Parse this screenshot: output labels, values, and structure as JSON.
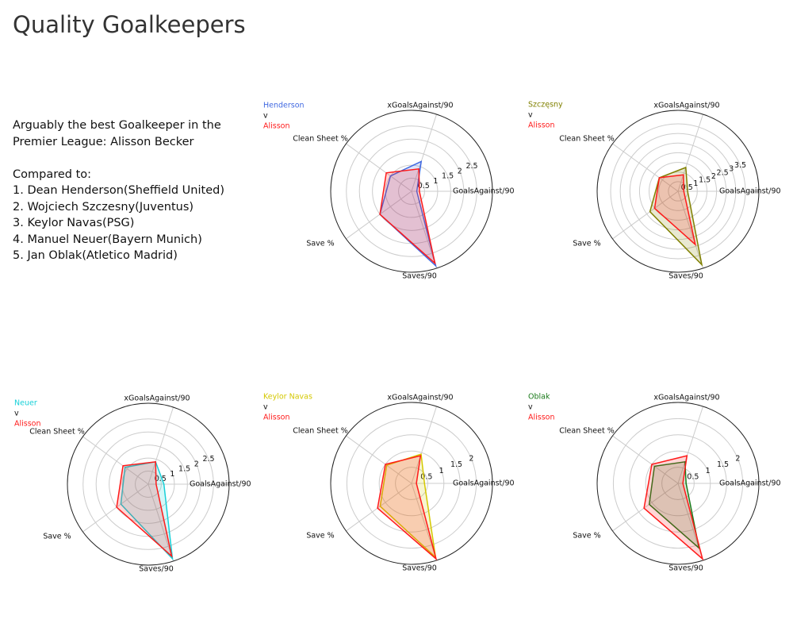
{
  "title": "Quality Goalkeepers",
  "description": {
    "lines": [
      "Arguably the best Goalkeeper in the",
      "Premier League: Alisson Becker",
      "",
      "Compared to:",
      "1. Dean Henderson(Sheffield United)",
      "2. Wojciech Szczesny(Juventus)",
      "3. Keylor Navas(PSG)",
      "4. Manuel Neuer(Bayern Munich)",
      "5. Jan Oblak(Atletico Madrid)"
    ]
  },
  "chart_data": [
    {
      "type": "radar",
      "legend_separator": "v",
      "categories": [
        "GoalsAgainst/90",
        "xGoalsAgainst/90",
        "Clean Sheet %",
        "Save %",
        "Saves/90"
      ],
      "rlim": [
        0,
        3.1
      ],
      "rticks": [
        0.5,
        1.0,
        1.5,
        2.0,
        2.5
      ],
      "series": [
        {
          "name": "Henderson",
          "color": "#4169e1",
          "values": [
            0.2,
            1.2,
            1.0,
            1.5,
            3.0
          ]
        },
        {
          "name": "Alisson",
          "color": "#ff1a1a",
          "values": [
            0.3,
            0.9,
            1.2,
            1.5,
            2.9
          ]
        }
      ]
    },
    {
      "type": "radar",
      "legend_separator": "v",
      "categories": [
        "GoalsAgainst/90",
        "xGoalsAgainst/90",
        "Clean Sheet %",
        "Save %",
        "Saves/90"
      ],
      "rlim": [
        0,
        4.2
      ],
      "rticks": [
        0.5,
        1.0,
        1.5,
        2.0,
        2.5,
        3.0,
        3.5
      ],
      "series": [
        {
          "name": "Szczęsny",
          "color": "#808000",
          "values": [
            0.5,
            1.3,
            1.2,
            1.8,
            4.0
          ]
        },
        {
          "name": "Alisson",
          "color": "#ff1a1a",
          "values": [
            0.3,
            0.9,
            1.2,
            1.5,
            2.9
          ]
        }
      ]
    },
    {
      "type": "radar",
      "legend_separator": "v",
      "categories": [
        "GoalsAgainst/90",
        "xGoalsAgainst/90",
        "Clean Sheet %",
        "Save %",
        "Saves/90"
      ],
      "rlim": [
        0,
        3.1
      ],
      "rticks": [
        0.5,
        1.0,
        1.5,
        2.0,
        2.5
      ],
      "series": [
        {
          "name": "Neuer",
          "color": "#17d0d8",
          "values": [
            0.6,
            0.9,
            1.1,
            1.3,
            3.0
          ]
        },
        {
          "name": "Alisson",
          "color": "#ff1a1a",
          "values": [
            0.3,
            0.9,
            1.2,
            1.5,
            2.9
          ]
        }
      ]
    },
    {
      "type": "radar",
      "legend_separator": "v",
      "categories": [
        "GoalsAgainst/90",
        "xGoalsAgainst/90",
        "Clean Sheet %",
        "Save %",
        "Saves/90"
      ],
      "rlim": [
        0,
        2.5
      ],
      "rticks": [
        0.5,
        1.0,
        1.5,
        2.0
      ],
      "series": [
        {
          "name": "Keylor Navas",
          "color": "#d4c800",
          "values": [
            0.4,
            0.95,
            0.95,
            1.2,
            2.4
          ]
        },
        {
          "name": "Alisson",
          "color": "#ff1a1a",
          "values": [
            0.15,
            0.9,
            1.0,
            1.3,
            2.45
          ]
        }
      ]
    },
    {
      "type": "radar",
      "legend_separator": "v",
      "categories": [
        "GoalsAgainst/90",
        "xGoalsAgainst/90",
        "Clean Sheet %",
        "Save %",
        "Saves/90"
      ],
      "rlim": [
        0,
        2.5
      ],
      "rticks": [
        0.5,
        1.0,
        1.5,
        2.0
      ],
      "series": [
        {
          "name": "Oblak",
          "color": "#1a7a1a",
          "values": [
            0.25,
            0.7,
            0.9,
            1.1,
            2.1
          ]
        },
        {
          "name": "Alisson",
          "color": "#ff1a1a",
          "values": [
            0.15,
            0.9,
            1.0,
            1.3,
            2.45
          ]
        }
      ]
    }
  ]
}
